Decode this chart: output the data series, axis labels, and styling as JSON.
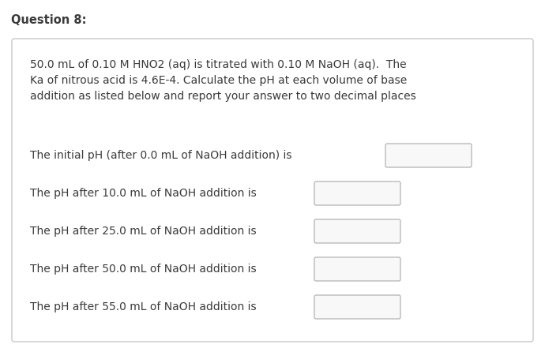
{
  "title": "Question 8:",
  "bg_color": "#ffffff",
  "panel_border_color": "#c8c8c8",
  "panel_facecolor": "#ffffff",
  "text_color": "#3a3a3a",
  "description": "50.0 mL of 0.10 M HNO2 (aq) is titrated with 0.10 M NaOH (aq).  The\nKa of nitrous acid is 4.6E-4. Calculate the pH at each volume of base\naddition as listed below and report your answer to two decimal places",
  "questions": [
    "The initial pH (after 0.0 mL of NaOH addition) is",
    "The pH after 10.0 mL of NaOH addition is",
    "The pH after 25.0 mL of NaOH addition is",
    "The pH after 50.0 mL of NaOH addition is",
    "The pH after 55.0 mL of NaOH addition is"
  ],
  "box_facecolor": "#f8f8f8",
  "box_edgecolor": "#aaaaaa",
  "title_fontsize": 10.5,
  "desc_fontsize": 10.0,
  "q_fontsize": 10.0
}
